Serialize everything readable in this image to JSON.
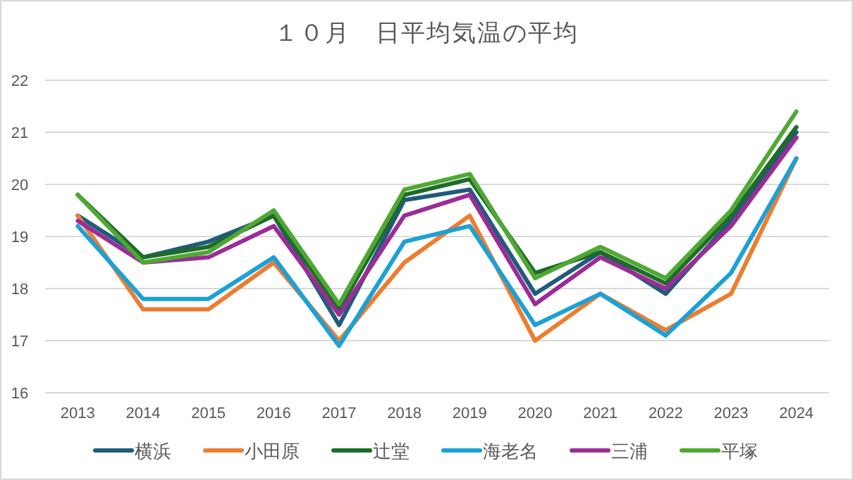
{
  "chart_data": {
    "type": "line",
    "title": "１０月　日平均気温の平均",
    "categories": [
      "2013",
      "2014",
      "2015",
      "2016",
      "2017",
      "2018",
      "2019",
      "2020",
      "2021",
      "2022",
      "2023",
      "2024"
    ],
    "ylim": [
      16,
      22
    ],
    "yticks": [
      16,
      17,
      18,
      19,
      20,
      21,
      22
    ],
    "grid": "y",
    "legend": "bottom",
    "marker": "none",
    "series": [
      {
        "name": "横浜",
        "color": "#1f5c7a",
        "values": [
          19.4,
          18.6,
          18.9,
          19.4,
          17.3,
          19.7,
          19.9,
          17.9,
          18.7,
          17.9,
          19.3,
          21.0
        ]
      },
      {
        "name": "小田原",
        "color": "#ed7d31",
        "values": [
          19.4,
          17.6,
          17.6,
          18.5,
          17.0,
          18.5,
          19.4,
          17.0,
          17.9,
          17.2,
          17.9,
          20.5
        ]
      },
      {
        "name": "辻堂",
        "color": "#1e6b2a",
        "values": [
          19.8,
          18.6,
          18.8,
          19.4,
          17.6,
          19.8,
          20.1,
          18.3,
          18.7,
          18.1,
          19.4,
          21.1
        ]
      },
      {
        "name": "海老名",
        "color": "#1ba1d6",
        "values": [
          19.2,
          17.8,
          17.8,
          18.6,
          16.9,
          18.9,
          19.2,
          17.3,
          17.9,
          17.1,
          18.3,
          20.5
        ]
      },
      {
        "name": "三浦",
        "color": "#9b2c96",
        "values": [
          19.3,
          18.5,
          18.6,
          19.2,
          17.5,
          19.4,
          19.8,
          17.7,
          18.6,
          18.0,
          19.2,
          20.9
        ]
      },
      {
        "name": "平塚",
        "color": "#4fa832",
        "values": [
          19.8,
          18.5,
          18.7,
          19.5,
          17.7,
          19.9,
          20.2,
          18.2,
          18.8,
          18.2,
          19.5,
          21.4
        ]
      }
    ]
  }
}
